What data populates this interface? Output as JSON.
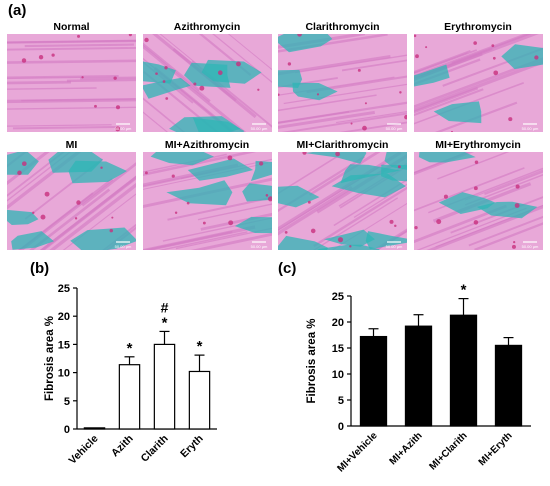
{
  "panel_labels": {
    "a": "(a)",
    "b": "(b)",
    "c": "(c)"
  },
  "histology": {
    "stain_colors": {
      "background": "#e8a8d8",
      "fibers": "#d47bc4",
      "collagen": "#2fb5b5",
      "nuclei": "#c8307e"
    },
    "tiles": [
      {
        "label": "Normal",
        "fibrosis": "none",
        "scale_text": "50.00 µm"
      },
      {
        "label": "Azithromycin",
        "fibrosis": "moderate",
        "scale_text": "50.00 µm"
      },
      {
        "label": "Clarithromycin",
        "fibrosis": "mild",
        "scale_text": "50.00 µm"
      },
      {
        "label": "Erythromycin",
        "fibrosis": "mild",
        "scale_text": "50.00 µm"
      },
      {
        "label": "MI",
        "fibrosis": "moderate",
        "scale_text": "50.00 µm"
      },
      {
        "label": "MI+Azithromycin",
        "fibrosis": "moderate",
        "scale_text": "50.00 µm"
      },
      {
        "label": "MI+Clarithromycin",
        "fibrosis": "heavy",
        "scale_text": "50.00 µm"
      },
      {
        "label": "MI+Erythromycin",
        "fibrosis": "mild",
        "scale_text": "50.00 µm"
      }
    ]
  },
  "chart_data": [
    {
      "type": "bar",
      "panel": "(b)",
      "categories": [
        "Vehicle",
        "Azith",
        "Clarith",
        "Eryth"
      ],
      "values": [
        0.2,
        11.4,
        15.0,
        10.2
      ],
      "errors": [
        0.1,
        1.4,
        2.3,
        2.9
      ],
      "annotations": [
        "",
        "*",
        "*",
        "*"
      ],
      "annotations_top": [
        "",
        "",
        "#",
        ""
      ],
      "ylabel": "Fibrosis  area %",
      "ylim": [
        0,
        25
      ],
      "yticks": [
        0,
        5,
        10,
        15,
        20,
        25
      ],
      "bar_color": "#ffffff",
      "grid": false
    },
    {
      "type": "bar",
      "panel": "(c)",
      "categories": [
        "MI+Vehicle",
        "MI+Azith",
        "MI+Clarith",
        "MI+Eryth"
      ],
      "values": [
        17.2,
        19.2,
        21.3,
        15.5
      ],
      "errors": [
        1.5,
        2.2,
        3.2,
        1.5
      ],
      "annotations": [
        "",
        "",
        "*",
        ""
      ],
      "annotations_top": [
        "",
        "",
        "",
        ""
      ],
      "ylabel": "Fibrosis  area  %",
      "ylim": [
        0,
        25
      ],
      "yticks": [
        0,
        5,
        10,
        15,
        20,
        25
      ],
      "bar_color": "#000000",
      "grid": false
    }
  ]
}
